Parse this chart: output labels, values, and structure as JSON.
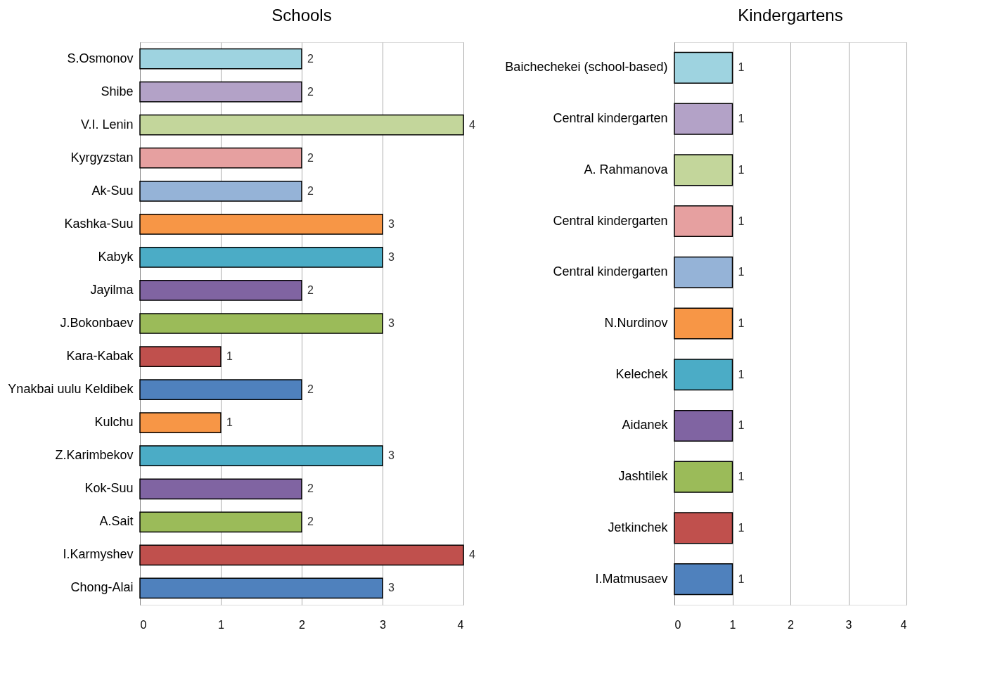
{
  "chart_data": [
    {
      "type": "bar",
      "orientation": "horizontal",
      "title": "Schools",
      "categories": [
        "S.Osmonov",
        "Shibe",
        "V.I. Lenin",
        "Kyrgyzstan",
        "Ak-Suu",
        "Kashka-Suu",
        "Kabyk",
        "Jayilma",
        "J.Bokonbaev",
        "Kara-Kabak",
        "Ynakbai uulu Keldibek",
        "Kulchu",
        "Z.Karimbekov",
        "Kok-Suu",
        "A.Sait",
        "I.Karmyshev",
        "Chong-Alai"
      ],
      "values": [
        2,
        2,
        4,
        2,
        2,
        3,
        3,
        2,
        3,
        1,
        2,
        1,
        3,
        2,
        2,
        4,
        3
      ],
      "colors": [
        "#9ed3e0",
        "#b3a2c7",
        "#c3d69b",
        "#e6a0a0",
        "#95b3d7",
        "#f79646",
        "#4bacc6",
        "#8064a2",
        "#9bbb59",
        "#c0504d",
        "#4f81bd",
        "#f79646",
        "#4bacc6",
        "#8064a2",
        "#9bbb59",
        "#c0504d",
        "#4f81bd"
      ],
      "xlim": [
        0,
        4
      ],
      "xticks": [
        0,
        1,
        2,
        3,
        4
      ],
      "grid": "x",
      "data_labels": true
    },
    {
      "type": "bar",
      "orientation": "horizontal",
      "title": "Kindergartens",
      "categories": [
        "Baichechekei (school-based)",
        "Central kindergarten",
        "A. Rahmanova",
        "Central kindergarten",
        "Central kindergarten",
        "N.Nurdinov",
        "Kelechek",
        "Aidanek",
        "Jashtilek",
        "Jetkinchek",
        "I.Matmusaev"
      ],
      "values": [
        1,
        1,
        1,
        1,
        1,
        1,
        1,
        1,
        1,
        1,
        1
      ],
      "colors": [
        "#9ed3e0",
        "#b3a2c7",
        "#c3d69b",
        "#e6a0a0",
        "#95b3d7",
        "#f79646",
        "#4bacc6",
        "#8064a2",
        "#9bbb59",
        "#c0504d",
        "#4f81bd"
      ],
      "xlim": [
        0,
        4
      ],
      "xticks": [
        0,
        1,
        2,
        3,
        4
      ],
      "grid": "x",
      "data_labels": true
    }
  ]
}
